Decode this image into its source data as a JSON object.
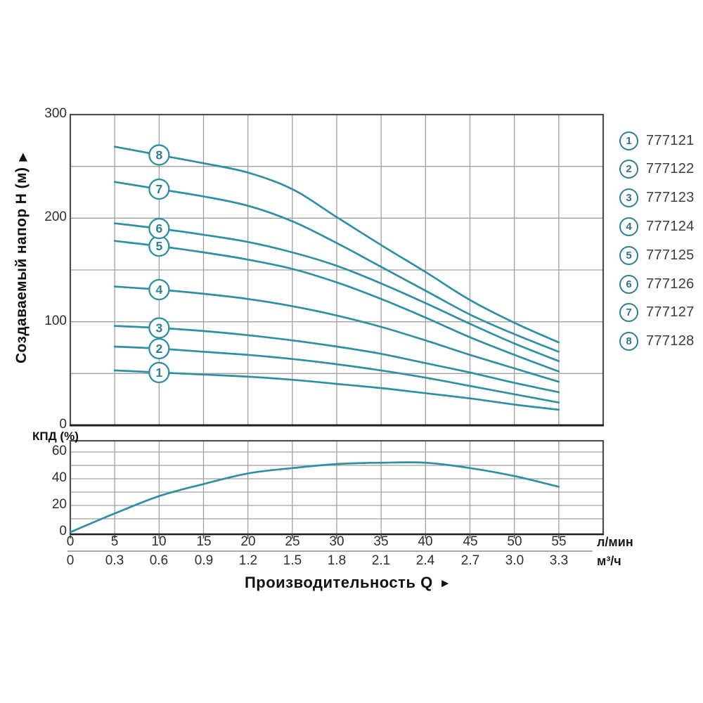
{
  "colors": {
    "curve": "#2f8fa3",
    "grid": "#a0a0a0",
    "border": "#4d4d4d",
    "baseline": "#1f1f1f",
    "badge_stroke": "#2f8fa3",
    "badge_number": "#2c7d97",
    "tick_text": "#2e2e2e"
  },
  "axis_titles": {
    "y_main": "Создаваемый напор H (м)",
    "y_main_arrow": "▶",
    "x_main": "Производительность Q",
    "x_main_arrow": "►",
    "efficiency": "КПД (%)",
    "unit_primary": "л/мин",
    "unit_secondary": "м³/ч"
  },
  "legend": {
    "items": [
      {
        "num": "1",
        "model": "777121"
      },
      {
        "num": "2",
        "model": "777122"
      },
      {
        "num": "3",
        "model": "777123"
      },
      {
        "num": "4",
        "model": "777124"
      },
      {
        "num": "5",
        "model": "777125"
      },
      {
        "num": "6",
        "model": "777126"
      },
      {
        "num": "7",
        "model": "777127"
      },
      {
        "num": "8",
        "model": "777128"
      }
    ]
  },
  "chart_data": [
    {
      "type": "line",
      "title": "Pump head curves",
      "xlabel": "Производительность Q",
      "ylabel": "Создаваемый напор H (м)",
      "x_units": [
        "л/мин",
        "м³/ч"
      ],
      "xlim": [
        0,
        60
      ],
      "ylim": [
        0,
        300
      ],
      "grid": true,
      "x_ticks_lmin": [
        0,
        5,
        10,
        15,
        20,
        25,
        30,
        35,
        40,
        45,
        50,
        55
      ],
      "x_ticks_m3h": [
        "0",
        "0.3",
        "0.6",
        "0.9",
        "1.2",
        "1.5",
        "1.8",
        "2.1",
        "2.4",
        "2.7",
        "3.0",
        "3.3"
      ],
      "y_ticks": [
        0,
        100,
        200,
        300
      ],
      "grid_step_y": 50,
      "x": [
        5,
        10,
        15,
        20,
        25,
        30,
        35,
        40,
        45,
        50,
        55
      ],
      "series": [
        {
          "label": "1",
          "name": "777121",
          "values": [
            53,
            51,
            49,
            47,
            44,
            40,
            36,
            31,
            26,
            20,
            15
          ]
        },
        {
          "label": "2",
          "name": "777122",
          "values": [
            76,
            74,
            71,
            68,
            64,
            59,
            53,
            46,
            38,
            30,
            22
          ]
        },
        {
          "label": "3",
          "name": "777123",
          "values": [
            96,
            94,
            91,
            87,
            82,
            76,
            69,
            60,
            51,
            41,
            32
          ]
        },
        {
          "label": "4",
          "name": "777124",
          "values": [
            134,
            131,
            127,
            122,
            115,
            106,
            95,
            82,
            68,
            55,
            42
          ]
        },
        {
          "label": "5",
          "name": "777125",
          "values": [
            178,
            173,
            167,
            160,
            151,
            138,
            122,
            104,
            85,
            68,
            52
          ]
        },
        {
          "label": "6",
          "name": "777126",
          "values": [
            195,
            190,
            184,
            177,
            167,
            154,
            137,
            118,
            98,
            79,
            62
          ]
        },
        {
          "label": "7",
          "name": "777127",
          "values": [
            235,
            228,
            221,
            212,
            197,
            176,
            153,
            130,
            107,
            88,
            71
          ]
        },
        {
          "label": "8",
          "name": "777128",
          "values": [
            269,
            261,
            253,
            244,
            228,
            201,
            174,
            148,
            121,
            99,
            80
          ]
        }
      ],
      "badge_at_x": 10
    },
    {
      "type": "line",
      "title": "КПД (%)",
      "ylabel": "КПД (%)",
      "xlim": [
        0,
        60
      ],
      "ylim": [
        0,
        70
      ],
      "grid": true,
      "y_ticks": [
        0,
        20,
        40,
        60
      ],
      "grid_step_y": 10,
      "x": [
        0,
        5,
        10,
        15,
        20,
        25,
        30,
        35,
        40,
        45,
        50,
        55
      ],
      "values": [
        0,
        14,
        27,
        36,
        44,
        48,
        51,
        52,
        52,
        48,
        42,
        34
      ]
    }
  ]
}
